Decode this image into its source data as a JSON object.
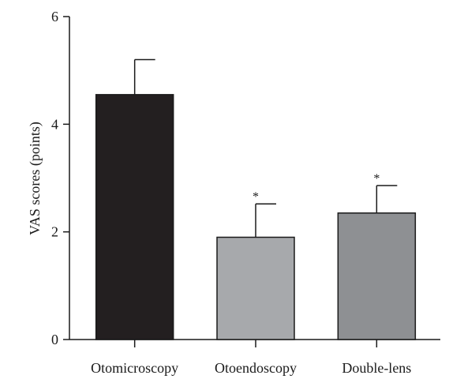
{
  "chart_data": {
    "type": "bar",
    "categories": [
      "Otomicroscopy",
      "Otoendoscopy",
      "Double-lens"
    ],
    "values": [
      4.55,
      1.9,
      2.35
    ],
    "error_upper": [
      5.2,
      2.52,
      2.86
    ],
    "significance_marks": [
      "",
      "*",
      "*"
    ],
    "bar_colors": [
      "#231f20",
      "#a7a9ac",
      "#8e9093"
    ],
    "title": "",
    "xlabel": "",
    "ylabel": "VAS scores (points)",
    "ylim": [
      0,
      6
    ],
    "yticks": [
      0,
      2,
      4,
      6
    ],
    "grid": false,
    "legend": "none"
  }
}
